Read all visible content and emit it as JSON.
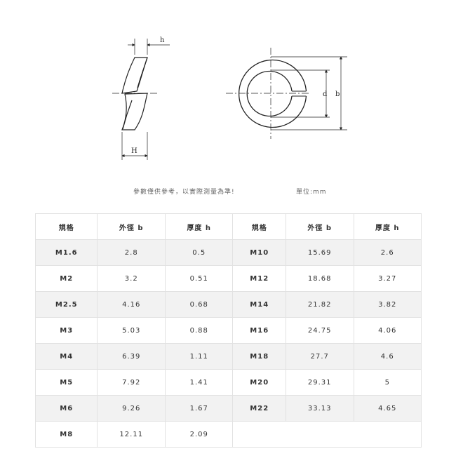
{
  "diagram": {
    "labels": {
      "h": "h",
      "H": "H",
      "d": "d",
      "b": "b"
    }
  },
  "notes": {
    "disclaimer": "參數僅供參考，以實際測量為準!",
    "unit": "單位:mm"
  },
  "table": {
    "headers": [
      "規格",
      "外徑 b",
      "厚度 h",
      "規格",
      "外徑 b",
      "厚度 h"
    ],
    "rows": [
      [
        "M1.6",
        "2.8",
        "0.5",
        "M10",
        "15.69",
        "2.6"
      ],
      [
        "M2",
        "3.2",
        "0.51",
        "M12",
        "18.68",
        "3.27"
      ],
      [
        "M2.5",
        "4.16",
        "0.68",
        "M14",
        "21.82",
        "3.82"
      ],
      [
        "M3",
        "5.03",
        "0.88",
        "M16",
        "24.75",
        "4.06"
      ],
      [
        "M4",
        "6.39",
        "1.11",
        "M18",
        "27.7",
        "4.6"
      ],
      [
        "M5",
        "7.92",
        "1.41",
        "M20",
        "29.31",
        "5"
      ],
      [
        "M6",
        "9.26",
        "1.67",
        "M22",
        "33.13",
        "4.65"
      ],
      [
        "M8",
        "12.11",
        "2.09"
      ]
    ]
  }
}
